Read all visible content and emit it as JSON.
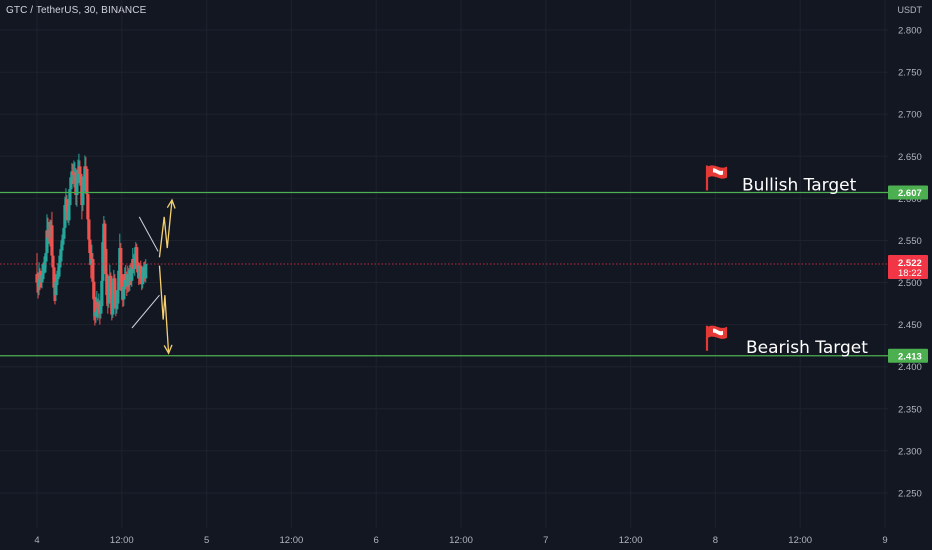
{
  "header": {
    "symbol_line": "GTC / TetherUS, 30, BINANCE",
    "currency": "USDT"
  },
  "colors": {
    "background": "#131722",
    "up_candle": "#26a69a",
    "down_candle": "#ef5350",
    "level_line": "#4caf50",
    "triangle_line": "#d1d4dc",
    "projection_arrow": "#f5d06f",
    "current_price": "#f23645"
  },
  "chart_data": {
    "type": "candlestick",
    "price_axis": {
      "ticks": [
        "2.800",
        "2.750",
        "2.700",
        "2.650",
        "2.600",
        "2.550",
        "2.500",
        "2.450",
        "2.400",
        "2.350",
        "2.300",
        "2.250"
      ],
      "ylim": [
        2.215,
        2.835
      ]
    },
    "time_axis": {
      "ticks": [
        "4",
        "12:00",
        "5",
        "12:00",
        "6",
        "12:00",
        "7",
        "12:00",
        "8",
        "12:00",
        "9"
      ]
    },
    "price_levels": [
      {
        "price": 2.607,
        "label": "2.607",
        "annotation": "Bullish Target",
        "icon": "red-flag-icon"
      },
      {
        "price": 2.413,
        "label": "2.413",
        "annotation": "Bearish Target",
        "icon": "red-flag-icon"
      }
    ],
    "current_price": {
      "price": 2.522,
      "label": "2.522",
      "countdown": "18:22"
    },
    "pattern": {
      "type": "symmetrical-triangle",
      "upper": [
        [
          2.603,
          2.578
        ],
        [
          2.714,
          2.537
        ]
      ],
      "lower": [
        [
          2.56,
          2.446
        ],
        [
          2.722,
          2.485
        ]
      ]
    },
    "projections": {
      "bullish_path": [
        [
          2.722,
          2.53
        ],
        [
          2.75,
          2.578
        ],
        [
          2.768,
          2.541
        ],
        [
          2.796,
          2.598
        ]
      ],
      "bearish_path": [
        [
          2.722,
          2.52
        ],
        [
          2.744,
          2.456
        ],
        [
          2.754,
          2.485
        ],
        [
          2.776,
          2.416
        ]
      ]
    },
    "candles": [
      [
        2.0,
        2.51,
        2.5,
        2.535,
        2.488
      ],
      [
        2.0059,
        2.5,
        2.495,
        2.512,
        2.481
      ],
      [
        2.0118,
        2.495,
        2.511,
        2.524,
        2.485
      ],
      [
        2.0176,
        2.511,
        2.504,
        2.517,
        2.491
      ],
      [
        2.0235,
        2.504,
        2.5,
        2.514,
        2.494
      ],
      [
        2.0294,
        2.5,
        2.509,
        2.522,
        2.493
      ],
      [
        2.0353,
        2.509,
        2.512,
        2.524,
        2.501
      ],
      [
        2.0412,
        2.512,
        2.518,
        2.531,
        2.504
      ],
      [
        2.0471,
        2.518,
        2.525,
        2.532,
        2.511
      ],
      [
        2.0529,
        2.525,
        2.535,
        2.548,
        2.512
      ],
      [
        2.0588,
        2.535,
        2.562,
        2.581,
        2.533
      ],
      [
        2.0647,
        2.562,
        2.553,
        2.577,
        2.548
      ],
      [
        2.0706,
        2.553,
        2.562,
        2.572,
        2.546
      ],
      [
        2.0765,
        2.562,
        2.553,
        2.575,
        2.543
      ],
      [
        2.0824,
        2.553,
        2.568,
        2.574,
        2.541
      ],
      [
        2.0882,
        2.568,
        2.532,
        2.584,
        2.52
      ],
      [
        2.0941,
        2.532,
        2.518,
        2.545,
        2.507
      ],
      [
        2.1,
        2.518,
        2.494,
        2.523,
        2.478
      ],
      [
        2.1059,
        2.494,
        2.485,
        2.5,
        2.474
      ],
      [
        2.1118,
        2.485,
        2.501,
        2.51,
        2.478
      ],
      [
        2.1176,
        2.501,
        2.504,
        2.514,
        2.489
      ],
      [
        2.1235,
        2.504,
        2.507,
        2.523,
        2.497
      ],
      [
        2.1294,
        2.507,
        2.518,
        2.523,
        2.505
      ],
      [
        2.1353,
        2.518,
        2.532,
        2.54,
        2.511
      ],
      [
        2.1412,
        2.532,
        2.538,
        2.55,
        2.521
      ],
      [
        2.1471,
        2.538,
        2.545,
        2.557,
        2.525
      ],
      [
        2.1529,
        2.545,
        2.552,
        2.555,
        2.542
      ],
      [
        2.1588,
        2.552,
        2.565,
        2.576,
        2.547
      ],
      [
        2.1647,
        2.565,
        2.592,
        2.602,
        2.559
      ],
      [
        2.1706,
        2.592,
        2.599,
        2.612,
        2.581
      ],
      [
        2.1765,
        2.599,
        2.585,
        2.604,
        2.575
      ],
      [
        2.1824,
        2.585,
        2.574,
        2.597,
        2.571
      ],
      [
        2.1882,
        2.574,
        2.592,
        2.6,
        2.568
      ],
      [
        2.1941,
        2.592,
        2.611,
        2.623,
        2.583
      ],
      [
        2.2,
        2.611,
        2.625,
        2.631,
        2.607
      ],
      [
        2.2059,
        2.625,
        2.632,
        2.642,
        2.616
      ],
      [
        2.2118,
        2.632,
        2.621,
        2.641,
        2.617
      ],
      [
        2.2176,
        2.621,
        2.628,
        2.645,
        2.613
      ],
      [
        2.2235,
        2.628,
        2.631,
        2.643,
        2.616
      ],
      [
        2.2294,
        2.631,
        2.604,
        2.636,
        2.592
      ],
      [
        2.2353,
        2.604,
        2.618,
        2.634,
        2.59
      ],
      [
        2.2412,
        2.618,
        2.634,
        2.646,
        2.606
      ],
      [
        2.2471,
        2.634,
        2.638,
        2.653,
        2.626
      ],
      [
        2.2529,
        2.638,
        2.629,
        2.645,
        2.62
      ],
      [
        2.2588,
        2.629,
        2.615,
        2.631,
        2.602
      ],
      [
        2.2647,
        2.615,
        2.592,
        2.62,
        2.575
      ],
      [
        2.2706,
        2.592,
        2.608,
        2.618,
        2.585
      ],
      [
        2.2765,
        2.608,
        2.626,
        2.631,
        2.6
      ],
      [
        2.2824,
        2.626,
        2.638,
        2.651,
        2.618
      ],
      [
        2.2882,
        2.638,
        2.635,
        2.649,
        2.622
      ],
      [
        2.2941,
        2.635,
        2.605,
        2.638,
        2.6
      ],
      [
        2.3,
        2.605,
        2.575,
        2.608,
        2.563
      ],
      [
        2.3059,
        2.575,
        2.551,
        2.58,
        2.54
      ],
      [
        2.3118,
        2.551,
        2.535,
        2.558,
        2.521
      ],
      [
        2.3176,
        2.535,
        2.521,
        2.541,
        2.505
      ],
      [
        2.3235,
        2.521,
        2.528,
        2.545,
        2.51
      ],
      [
        2.3294,
        2.528,
        2.501,
        2.535,
        2.482
      ],
      [
        2.3353,
        2.501,
        2.48,
        2.507,
        2.455
      ],
      [
        2.3412,
        2.48,
        2.46,
        2.485,
        2.449
      ],
      [
        2.3471,
        2.46,
        2.465,
        2.483,
        2.452
      ],
      [
        2.3529,
        2.465,
        2.477,
        2.49,
        2.458
      ],
      [
        2.3588,
        2.477,
        2.469,
        2.481,
        2.455
      ],
      [
        2.3647,
        2.469,
        2.475,
        2.487,
        2.458
      ],
      [
        2.3706,
        2.475,
        2.463,
        2.479,
        2.45
      ],
      [
        2.3765,
        2.463,
        2.472,
        2.484,
        2.457
      ],
      [
        2.3824,
        2.472,
        2.502,
        2.51,
        2.468
      ],
      [
        2.3882,
        2.502,
        2.548,
        2.558,
        2.495
      ],
      [
        2.3941,
        2.548,
        2.57,
        2.579,
        2.54
      ],
      [
        2.4,
        2.57,
        2.54,
        2.574,
        2.532
      ],
      [
        2.4059,
        2.54,
        2.51,
        2.545,
        2.501
      ],
      [
        2.4118,
        2.51,
        2.485,
        2.516,
        2.472
      ],
      [
        2.4176,
        2.485,
        2.475,
        2.492,
        2.463
      ],
      [
        2.4235,
        2.475,
        2.495,
        2.506,
        2.47
      ],
      [
        2.4294,
        2.495,
        2.508,
        2.521,
        2.489
      ],
      [
        2.4353,
        2.508,
        2.481,
        2.512,
        2.468
      ],
      [
        2.4412,
        2.481,
        2.462,
        2.487,
        2.455
      ],
      [
        2.4471,
        2.462,
        2.485,
        2.499,
        2.458
      ],
      [
        2.4529,
        2.485,
        2.505,
        2.515,
        2.478
      ],
      [
        2.4588,
        2.505,
        2.486,
        2.51,
        2.475
      ],
      [
        2.4647,
        2.486,
        2.469,
        2.49,
        2.46
      ],
      [
        2.4706,
        2.469,
        2.475,
        2.489,
        2.463
      ],
      [
        2.4765,
        2.475,
        2.491,
        2.501,
        2.468
      ],
      [
        2.4824,
        2.491,
        2.514,
        2.525,
        2.484
      ],
      [
        2.4882,
        2.514,
        2.541,
        2.558,
        2.505
      ],
      [
        2.4941,
        2.541,
        2.51,
        2.547,
        2.498
      ],
      [
        2.5,
        2.51,
        2.49,
        2.515,
        2.479
      ],
      [
        2.5059,
        2.49,
        2.48,
        2.497,
        2.471
      ],
      [
        2.5118,
        2.48,
        2.495,
        2.507,
        2.472
      ],
      [
        2.5176,
        2.495,
        2.51,
        2.518,
        2.487
      ],
      [
        2.5235,
        2.51,
        2.503,
        2.521,
        2.492
      ],
      [
        2.5294,
        2.503,
        2.495,
        2.513,
        2.484
      ],
      [
        2.5353,
        2.495,
        2.51,
        2.52,
        2.488
      ],
      [
        2.5412,
        2.51,
        2.497,
        2.517,
        2.489
      ],
      [
        2.5471,
        2.497,
        2.515,
        2.521,
        2.49
      ],
      [
        2.5529,
        2.515,
        2.502,
        2.523,
        2.497
      ],
      [
        2.5588,
        2.502,
        2.518,
        2.525,
        2.495
      ],
      [
        2.5647,
        2.518,
        2.528,
        2.541,
        2.51
      ],
      [
        2.5706,
        2.528,
        2.516,
        2.534,
        2.511
      ],
      [
        2.5765,
        2.516,
        2.53,
        2.535,
        2.508
      ],
      [
        2.5824,
        2.53,
        2.542,
        2.548,
        2.521
      ],
      [
        2.5882,
        2.542,
        2.524,
        2.546,
        2.519
      ],
      [
        2.5941,
        2.524,
        2.512,
        2.53,
        2.505
      ],
      [
        2.6,
        2.512,
        2.505,
        2.519,
        2.497
      ],
      [
        2.6059,
        2.505,
        2.52,
        2.523,
        2.498
      ],
      [
        2.6118,
        2.52,
        2.51,
        2.526,
        2.499
      ],
      [
        2.6176,
        2.51,
        2.498,
        2.515,
        2.491
      ],
      [
        2.6235,
        2.498,
        2.512,
        2.519,
        2.493
      ],
      [
        2.6294,
        2.512,
        2.518,
        2.524,
        2.505
      ],
      [
        2.6353,
        2.518,
        2.505,
        2.525,
        2.501
      ],
      [
        2.6412,
        2.505,
        2.522,
        2.528,
        2.5
      ]
    ]
  }
}
